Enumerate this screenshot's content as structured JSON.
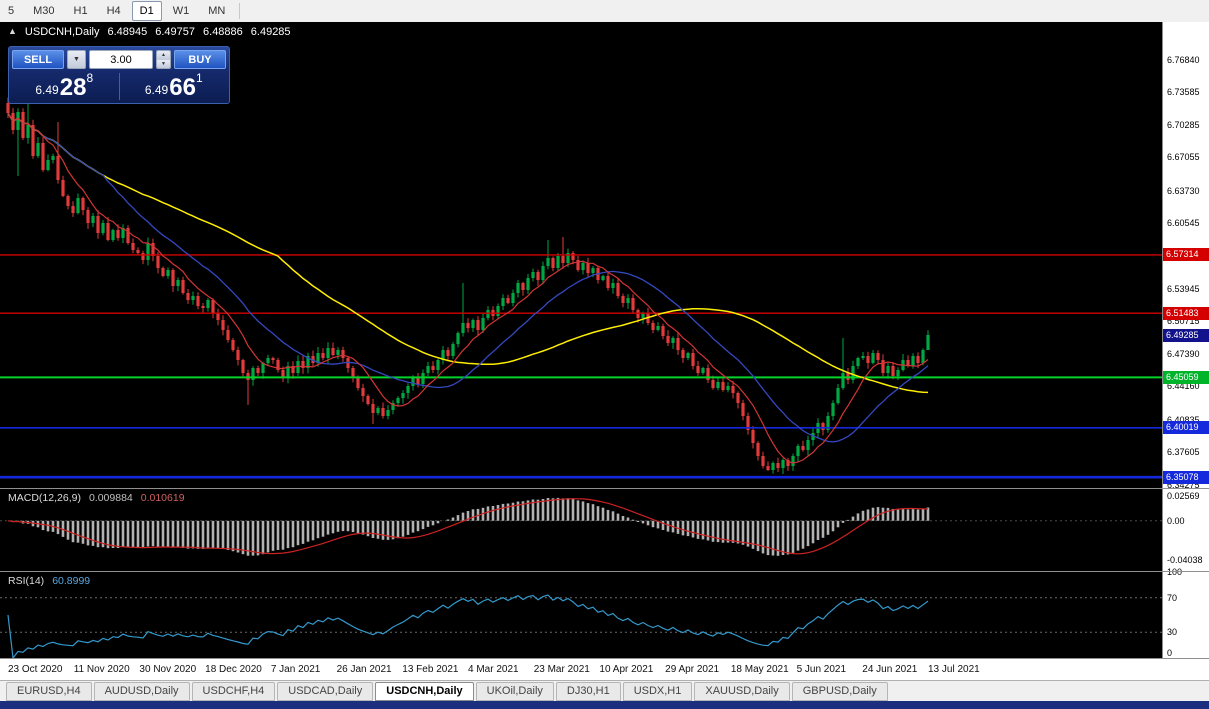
{
  "toolbar": {
    "periods": [
      {
        "label": "5",
        "state": "normal"
      },
      {
        "label": "M30",
        "state": "normal"
      },
      {
        "label": "H1",
        "state": "normal"
      },
      {
        "label": "H4",
        "state": "normal"
      },
      {
        "label": "D1",
        "state": "active"
      },
      {
        "label": "W1",
        "state": "normal"
      },
      {
        "label": "MN",
        "state": "normal"
      }
    ]
  },
  "chart": {
    "title": "USDCNH,Daily",
    "ohlc": {
      "open": "6.48945",
      "high": "6.49757",
      "low": "6.48886",
      "close": "6.49285"
    },
    "trade_panel": {
      "sell_label": "SELL",
      "buy_label": "BUY",
      "volume": "3.00",
      "sell_price_small": "6.49",
      "sell_price_big": "28",
      "sell_price_sup": "8",
      "buy_price_small": "6.49",
      "buy_price_big": "66",
      "buy_price_sup": "1"
    },
    "axis_labels": [
      "6.76840",
      "6.73585",
      "6.70285",
      "6.67055",
      "6.63730",
      "6.60545",
      "6.53945",
      "6.50715",
      "6.47390",
      "6.44160",
      "6.40835",
      "6.37605",
      "6.34275"
    ],
    "badges": [
      {
        "text": "6.57314",
        "color": "#d40000"
      },
      {
        "text": "6.51483",
        "color": "#d40000"
      },
      {
        "text": "6.49285",
        "color": "#12128c"
      },
      {
        "text": "6.45059",
        "color": "#00b42a"
      },
      {
        "text": "6.40019",
        "color": "#1428dc"
      },
      {
        "text": "6.35078",
        "color": "#1428dc"
      }
    ],
    "hlines": [
      {
        "price": 6.57314,
        "color": "#d40000",
        "width": 1.4
      },
      {
        "price": 6.51483,
        "color": "#d40000",
        "width": 1.4
      },
      {
        "price": 6.45059,
        "color": "#00d42a",
        "width": 2
      },
      {
        "price": 6.40019,
        "color": "#1428dc",
        "width": 1.6
      },
      {
        "price": 6.35078,
        "color": "#1428dc",
        "width": 2.6
      }
    ]
  },
  "chart_data": {
    "type": "candlestick",
    "symbol": "USDCNH",
    "timeframe": "Daily",
    "title": "USDCNH,Daily",
    "price_range": {
      "top": 6.806,
      "bottom": 6.34
    },
    "x_labels": [
      "23 Oct 2020",
      "11 Nov 2020",
      "30 Nov 2020",
      "18 Dec 2020",
      "7 Jan 2021",
      "26 Jan 2021",
      "13 Feb 2021",
      "4 Mar 2021",
      "23 Mar 2021",
      "10 Apr 2021",
      "29 Apr 2021",
      "18 May 2021",
      "5 Jun 2021",
      "24 Jun 2021",
      "13 Jul 2021"
    ],
    "first_open": 6.725,
    "up_color": "#00a843",
    "down_color": "#e23b3b",
    "closes": [
      6.715,
      6.698,
      6.716,
      6.69,
      6.703,
      6.672,
      6.685,
      6.658,
      6.668,
      6.672,
      6.648,
      6.632,
      6.622,
      6.615,
      6.63,
      6.618,
      6.605,
      6.612,
      6.595,
      6.605,
      6.588,
      6.598,
      6.59,
      6.6,
      6.585,
      6.578,
      6.575,
      6.568,
      6.585,
      6.572,
      6.56,
      6.552,
      6.558,
      6.542,
      6.548,
      6.535,
      6.528,
      6.532,
      6.522,
      6.52,
      6.528,
      6.515,
      6.508,
      6.498,
      6.488,
      6.478,
      6.468,
      6.455,
      6.448,
      6.46,
      6.455,
      6.465,
      6.47,
      6.468,
      6.458,
      6.45,
      6.462,
      6.455,
      6.467,
      6.46,
      6.472,
      6.465,
      6.475,
      6.47,
      6.48,
      6.473,
      6.478,
      6.47,
      6.46,
      6.45,
      6.44,
      6.432,
      6.424,
      6.415,
      6.42,
      6.412,
      6.418,
      6.425,
      6.43,
      6.435,
      6.442,
      6.45,
      6.444,
      6.455,
      6.462,
      6.458,
      6.468,
      6.478,
      6.472,
      6.484,
      6.495,
      6.505,
      6.5,
      6.508,
      6.498,
      6.51,
      6.518,
      6.512,
      6.522,
      6.53,
      6.525,
      6.535,
      6.545,
      6.538,
      6.55,
      6.556,
      6.548,
      6.562,
      6.57,
      6.56,
      6.572,
      6.565,
      6.575,
      6.568,
      6.558,
      6.565,
      6.555,
      6.56,
      6.548,
      6.552,
      6.54,
      6.545,
      6.532,
      6.525,
      6.53,
      6.518,
      6.51,
      6.515,
      6.505,
      6.498,
      6.502,
      6.492,
      6.485,
      6.49,
      6.478,
      6.47,
      6.475,
      6.462,
      6.455,
      6.46,
      6.448,
      6.44,
      6.446,
      6.438,
      6.442,
      6.435,
      6.425,
      6.412,
      6.398,
      6.385,
      6.372,
      6.362,
      6.358,
      6.365,
      6.36,
      6.368,
      6.362,
      6.372,
      6.382,
      6.378,
      6.388,
      6.395,
      6.405,
      6.398,
      6.412,
      6.425,
      6.44,
      6.455,
      6.448,
      6.462,
      6.47,
      6.472,
      6.465,
      6.475,
      6.468,
      6.455,
      6.462,
      6.452,
      6.458,
      6.468,
      6.462,
      6.472,
      6.465,
      6.478,
      6.493
    ],
    "wick_overrides": {
      "2": {
        "low": 6.652
      },
      "4": {
        "high": 6.732
      },
      "10": {
        "high": 6.706
      },
      "48": {
        "low": 6.423
      },
      "73": {
        "low": 6.404
      },
      "91": {
        "high": 6.545
      },
      "108": {
        "high": 6.588
      },
      "111": {
        "high": 6.591
      },
      "152": {
        "low": 6.357
      },
      "154": {
        "low": 6.356
      },
      "167": {
        "high": 6.49
      },
      "184": {
        "high": 6.4976,
        "low": 6.4889
      }
    },
    "moving_averages": [
      {
        "name": "ma-fast",
        "period": 8,
        "color": "#d23535",
        "width": 1.2
      },
      {
        "name": "ma-mid",
        "period": 20,
        "color": "#3448c0",
        "width": 1.3
      },
      {
        "name": "ma-slow",
        "period": 55,
        "color": "#ffee00",
        "width": 1.5
      }
    ]
  },
  "macd": {
    "label": "MACD(12,26,9)",
    "value1": "0.009884",
    "value2": "0.010619",
    "params": {
      "fast": 12,
      "slow": 26,
      "signal": 9
    },
    "range": {
      "max": 0.033,
      "min": -0.052
    },
    "hist_color": "#b2b2b2",
    "signal_color": "#cc2222",
    "axis": [
      {
        "text": "0.02569",
        "value": 0.02569
      },
      {
        "text": "0.00",
        "value": 0
      },
      {
        "text": "-0.04038",
        "value": -0.04038
      }
    ]
  },
  "rsi": {
    "label": "RSI(14)",
    "value": "60.8999",
    "period": 14,
    "color": "#3399cc",
    "levels": [
      70,
      30
    ],
    "axis": [
      {
        "text": "100",
        "value": 100
      },
      {
        "text": "70",
        "value": 70
      },
      {
        "text": "30",
        "value": 30
      },
      {
        "text": "0",
        "value": 0
      }
    ]
  },
  "tabs": {
    "items": [
      {
        "label": "EURUSD,H4",
        "active": false
      },
      {
        "label": "AUDUSD,Daily",
        "active": false
      },
      {
        "label": "USDCHF,H4",
        "active": false
      },
      {
        "label": "USDCAD,Daily",
        "active": false
      },
      {
        "label": "USDCNH,Daily",
        "active": true
      },
      {
        "label": "UKOil,Daily",
        "active": false
      },
      {
        "label": "DJ30,H1",
        "active": false
      },
      {
        "label": "USDX,H1",
        "active": false
      },
      {
        "label": "XAUUSD,Daily",
        "active": false
      },
      {
        "label": "GBPUSD,Daily",
        "active": false
      }
    ]
  }
}
